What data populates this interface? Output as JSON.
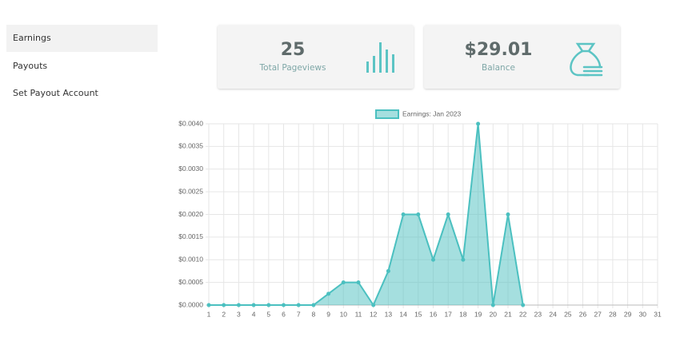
{
  "sidebar": {
    "items": [
      "Earnings",
      "Payouts",
      "Set Payout Account"
    ]
  },
  "cards": [
    {
      "value": 25,
      "label": "Total Pageviews"
    },
    {
      "value": "$29.01",
      "label": "Balance"
    }
  ],
  "chart_data": {
    "type": "line",
    "categories": [
      "1",
      "2",
      "3",
      "4",
      "5",
      "6",
      "7",
      "8",
      "9",
      "10",
      "11",
      "12",
      "13",
      "14",
      "15",
      "16",
      "17",
      "18",
      "19",
      "20",
      "21",
      "22",
      "23",
      "24",
      "25",
      "26",
      "27",
      "28",
      "29",
      "30",
      "31"
    ],
    "series": [
      {
        "name": "Earnings: Jan 2023",
        "color": "#4bc0c0",
        "values": [
          0,
          0,
          0,
          0,
          0,
          0,
          0,
          0,
          0.00025,
          0.0005,
          0.0005,
          0,
          0.00075,
          0.002,
          0.002,
          0.001,
          0.002,
          0.001,
          0.004,
          0,
          0.002,
          0,
          null,
          null,
          null,
          null,
          null,
          null,
          null,
          null,
          null
        ]
      }
    ],
    "ylim": [
      0,
      0.004
    ],
    "yticks": [
      {
        "value": 0,
        "label": "$0.0000"
      },
      {
        "value": 0.0005,
        "label": "$0.0005"
      },
      {
        "value": 0.001,
        "label": "$0.0010"
      },
      {
        "value": 0.0015,
        "label": "$0.0015"
      },
      {
        "value": 0.002,
        "label": "$0.0020"
      },
      {
        "value": 0.0025,
        "label": "$0.0025"
      },
      {
        "value": 0.003,
        "label": "$0.0030"
      },
      {
        "value": 0.0035,
        "label": "$0.0035"
      },
      {
        "value": 0.004,
        "label": "$0.0040"
      }
    ],
    "grid": true,
    "legend": "top"
  }
}
